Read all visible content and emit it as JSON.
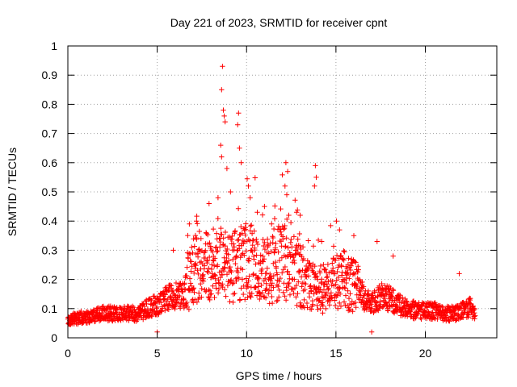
{
  "chart_data": {
    "type": "scatter",
    "title": "Day 221 of 2023, SRMTID for receiver cpnt",
    "xlabel": "GPS time / hours",
    "ylabel": "SRMTID / TECUs",
    "xlim": [
      0,
      24
    ],
    "ylim": [
      0,
      1
    ],
    "xticks": [
      0,
      5,
      10,
      15,
      20
    ],
    "xtick_labels": [
      "0",
      "5",
      "10",
      "15",
      "20"
    ],
    "yticks": [
      0,
      0.1,
      0.2,
      0.3,
      0.4,
      0.5,
      0.6,
      0.7,
      0.8,
      0.9,
      1
    ],
    "ytick_labels": [
      "0",
      "0.1",
      "0.2",
      "0.3",
      "0.4",
      "0.5",
      "0.6",
      "0.7",
      "0.8",
      "0.9",
      "1"
    ],
    "grid": true,
    "marker": "plus",
    "series": [
      {
        "name": "SRMTID",
        "color": "#ff0000",
        "profile_x": [
          0,
          1,
          2,
          3,
          4,
          4.5,
          5,
          5.5,
          6,
          6.5,
          7,
          7.5,
          8,
          8.5,
          9,
          9.5,
          10,
          10.5,
          11,
          11.5,
          12,
          12.5,
          13,
          13.5,
          14,
          14.5,
          15,
          15.5,
          16,
          16.5,
          17,
          17.5,
          18,
          18.5,
          19,
          19.5,
          20,
          20.5,
          21,
          21.5,
          22,
          22.5,
          22.8
        ],
        "profile_y": [
          0.06,
          0.07,
          0.08,
          0.08,
          0.08,
          0.1,
          0.11,
          0.13,
          0.14,
          0.14,
          0.22,
          0.24,
          0.22,
          0.25,
          0.22,
          0.24,
          0.25,
          0.24,
          0.22,
          0.22,
          0.26,
          0.22,
          0.2,
          0.17,
          0.16,
          0.16,
          0.18,
          0.18,
          0.17,
          0.14,
          0.11,
          0.14,
          0.13,
          0.11,
          0.1,
          0.09,
          0.09,
          0.09,
          0.08,
          0.08,
          0.09,
          0.1,
          0.09
        ],
        "peaks": [
          {
            "x": 8.65,
            "y": 0.93
          },
          {
            "x": 8.6,
            "y": 0.85
          },
          {
            "x": 8.7,
            "y": 0.78
          },
          {
            "x": 8.75,
            "y": 0.76
          },
          {
            "x": 8.8,
            "y": 0.74
          },
          {
            "x": 8.55,
            "y": 0.66
          },
          {
            "x": 8.6,
            "y": 0.62
          },
          {
            "x": 9.55,
            "y": 0.77
          },
          {
            "x": 9.5,
            "y": 0.73
          },
          {
            "x": 9.6,
            "y": 0.65
          },
          {
            "x": 9.7,
            "y": 0.6
          },
          {
            "x": 8.9,
            "y": 0.58
          },
          {
            "x": 12.2,
            "y": 0.6
          },
          {
            "x": 12.3,
            "y": 0.57
          },
          {
            "x": 12.15,
            "y": 0.52
          },
          {
            "x": 12.25,
            "y": 0.49
          },
          {
            "x": 13.85,
            "y": 0.59
          },
          {
            "x": 13.9,
            "y": 0.55
          },
          {
            "x": 13.8,
            "y": 0.52
          },
          {
            "x": 10.1,
            "y": 0.52
          },
          {
            "x": 10.2,
            "y": 0.48
          },
          {
            "x": 9.1,
            "y": 0.5
          },
          {
            "x": 7.9,
            "y": 0.46
          },
          {
            "x": 8.4,
            "y": 0.48
          },
          {
            "x": 11.0,
            "y": 0.45
          },
          {
            "x": 12.8,
            "y": 0.43
          },
          {
            "x": 13.0,
            "y": 0.42
          },
          {
            "x": 15.2,
            "y": 0.37
          },
          {
            "x": 16.0,
            "y": 0.35
          },
          {
            "x": 17.3,
            "y": 0.33
          },
          {
            "x": 18.2,
            "y": 0.28
          },
          {
            "x": 5.9,
            "y": 0.3
          },
          {
            "x": 21.9,
            "y": 0.22
          },
          {
            "x": 6.8,
            "y": 0.39
          },
          {
            "x": 7.2,
            "y": 0.4
          },
          {
            "x": 10.6,
            "y": 0.43
          },
          {
            "x": 11.4,
            "y": 0.39
          },
          {
            "x": 14.2,
            "y": 0.33
          },
          {
            "x": 17.0,
            "y": 0.02
          },
          {
            "x": 5.0,
            "y": 0.02
          }
        ]
      }
    ]
  }
}
